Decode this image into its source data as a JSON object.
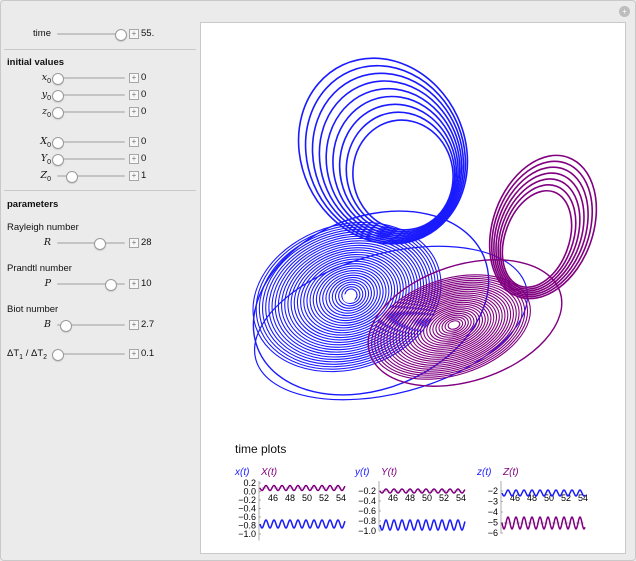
{
  "window": {
    "close_glyph": "+"
  },
  "controls": {
    "time": {
      "label": "time",
      "value": "55.",
      "frac": 0.92
    },
    "initial_values_heading": "initial values",
    "initial": [
      {
        "var": "x",
        "sub": "0",
        "value": "0",
        "frac": 0.0
      },
      {
        "var": "y",
        "sub": "0",
        "value": "0",
        "frac": 0.0
      },
      {
        "var": "z",
        "sub": "0",
        "value": "0",
        "frac": 0.0
      },
      {
        "var": "X",
        "sub": "0",
        "value": "0",
        "frac": 0.0
      },
      {
        "var": "Y",
        "sub": "0",
        "value": "0",
        "frac": 0.0
      },
      {
        "var": "Z",
        "sub": "0",
        "value": "1",
        "frac": 0.2
      }
    ],
    "parameters_heading": "parameters",
    "rayleigh": {
      "name": "Rayleigh number",
      "symbol": "R",
      "value": "28",
      "frac": 0.62
    },
    "prandtl": {
      "name": "Prandtl number",
      "symbol": "P",
      "value": "10",
      "frac": 0.78
    },
    "biot": {
      "name": "Biot number",
      "symbol": "B",
      "value": "2.7",
      "frac": 0.12
    },
    "ratio": {
      "label_pre": "ΔT",
      "sub1": "1",
      "mid": " / ΔT",
      "sub2": "2",
      "value": "0.1",
      "frac": 0.0
    },
    "plus_glyph": "+"
  },
  "plot": {
    "attractor_colors": {
      "blue": "#1a1aff",
      "purple": "#800080"
    },
    "time_plots_title": "time plots",
    "time_plots": [
      {
        "legend_a": "x(t)",
        "legend_b": "X(t)",
        "yticks": [
          "0.2",
          "0.0",
          "−0.2",
          "−0.4",
          "−0.6",
          "−0.8",
          "−1.0"
        ],
        "xticks": [
          "46",
          "48",
          "50",
          "52",
          "54"
        ]
      },
      {
        "legend_a": "y(t)",
        "legend_b": "Y(t)",
        "yticks": [
          "−0.2",
          "−0.4",
          "−0.6",
          "−0.8",
          "−1.0"
        ],
        "xticks": [
          "46",
          "48",
          "50",
          "52",
          "54"
        ]
      },
      {
        "legend_a": "z(t)",
        "legend_b": "Z(t)",
        "yticks": [
          "−2",
          "−3",
          "−4",
          "−5",
          "−6"
        ],
        "xticks": [
          "46",
          "48",
          "50",
          "52",
          "54"
        ]
      }
    ]
  }
}
